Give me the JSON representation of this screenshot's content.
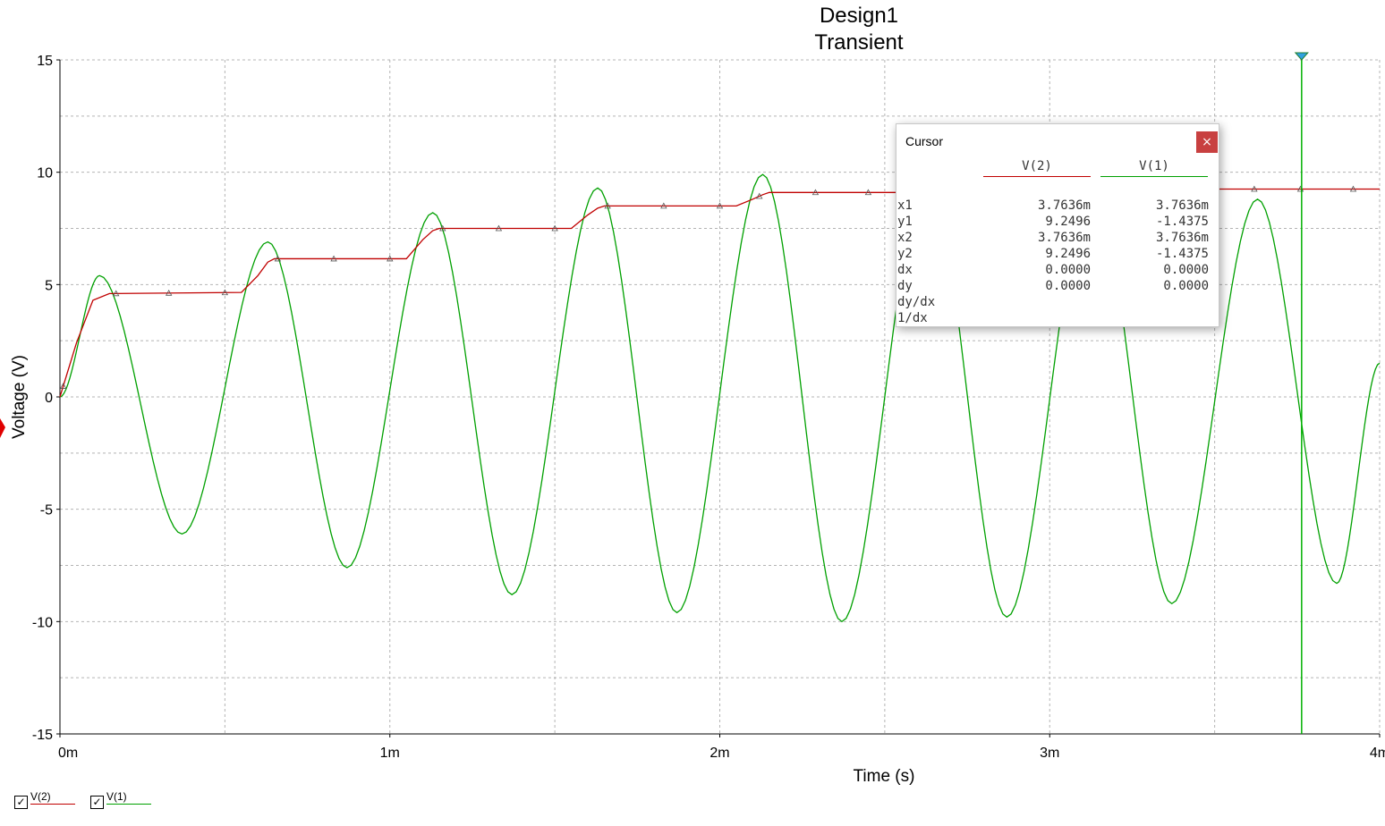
{
  "window_title_line1": "Design1",
  "window_title_line2": "Transient",
  "colors": {
    "v2": "#c00000",
    "v1": "#00a000",
    "grid": "#b4b4b4",
    "close": "#c84040"
  },
  "chart_data": {
    "type": "line",
    "title": "Design1",
    "subtitle": "Transient",
    "xlabel": "Time (s)",
    "ylabel": "Voltage (V)",
    "xlim": [
      0,
      0.004
    ],
    "ylim": [
      -15,
      15
    ],
    "grid": true,
    "legend": "bottom-left",
    "x_ticks": [
      {
        "value": 0,
        "label": "0m"
      },
      {
        "value": 0.001,
        "label": "1m"
      },
      {
        "value": 0.002,
        "label": "2m"
      },
      {
        "value": 0.003,
        "label": "3m"
      },
      {
        "value": 0.004,
        "label": "4m"
      }
    ],
    "y_ticks": [
      {
        "value": -15,
        "label": "-15"
      },
      {
        "value": -10,
        "label": "-10"
      },
      {
        "value": -5,
        "label": "-5"
      },
      {
        "value": 0,
        "label": "0"
      },
      {
        "value": 5,
        "label": "5"
      },
      {
        "value": 10,
        "label": "10"
      },
      {
        "value": 15,
        "label": "15"
      }
    ],
    "series": [
      {
        "name": "V(2)",
        "color": "#c00000",
        "x": [
          0,
          5e-05,
          0.0001,
          0.00015,
          0.00055,
          0.0006,
          0.00063,
          0.00065,
          0.00105,
          0.0011,
          0.00113,
          0.00115,
          0.00155,
          0.0016,
          0.00163,
          0.00165,
          0.00205,
          0.0021,
          0.00213,
          0.00215,
          0.00305,
          0.0031,
          0.00313,
          0.00315,
          0.004
        ],
        "values": [
          0,
          2.4,
          4.3,
          4.6,
          4.65,
          5.4,
          6.0,
          6.15,
          6.15,
          7.0,
          7.4,
          7.5,
          7.5,
          8.1,
          8.4,
          8.5,
          8.5,
          8.8,
          9.0,
          9.1,
          9.1,
          9.2,
          9.24,
          9.25,
          9.25
        ],
        "marker_x": [
          1e-05,
          0.00017,
          0.00033,
          0.0005,
          0.00066,
          0.00083,
          0.001,
          0.00116,
          0.00133,
          0.0015,
          0.00166,
          0.00183,
          0.002,
          0.00212,
          0.00229,
          0.00245,
          0.00262,
          0.00279,
          0.00295,
          0.00312,
          0.00329,
          0.00346,
          0.00362,
          0.00376,
          0.00392
        ]
      },
      {
        "name": "V(1)",
        "color": "#00a000",
        "x": [
          0,
          0.00012,
          0.00037,
          0.00063,
          0.00087,
          0.00113,
          0.00137,
          0.00163,
          0.00187,
          0.00213,
          0.00237,
          0.00263,
          0.00287,
          0.00313,
          0.00337,
          0.00363,
          0.00387,
          0.004
        ],
        "values": [
          0,
          5.4,
          -6.1,
          6.9,
          -7.6,
          8.2,
          -8.8,
          9.3,
          -9.6,
          9.9,
          -10.0,
          10.0,
          -9.8,
          9.6,
          -9.2,
          8.8,
          -8.3,
          1.5
        ]
      }
    ],
    "cursor": {
      "x": 0.0037636
    }
  },
  "cursor_panel": {
    "title": "Cursor",
    "close_label": "×",
    "columns": [
      "V(2)",
      "V(1)"
    ],
    "rows": [
      {
        "label": "x1",
        "v2": "3.7636m",
        "v1": "3.7636m"
      },
      {
        "label": "y1",
        "v2": "9.2496",
        "v1": "-1.4375"
      },
      {
        "label": "x2",
        "v2": "3.7636m",
        "v1": "3.7636m"
      },
      {
        "label": "y2",
        "v2": "9.2496",
        "v1": "-1.4375"
      },
      {
        "label": "dx",
        "v2": "0.0000",
        "v1": "0.0000"
      },
      {
        "label": "dy",
        "v2": "0.0000",
        "v1": "0.0000"
      },
      {
        "label": "dy/dx",
        "v2": "",
        "v1": ""
      },
      {
        "label": "1/dx",
        "v2": "",
        "v1": ""
      }
    ]
  },
  "legend": [
    {
      "name": "V(2)",
      "checked": "✓",
      "color": "#c00000"
    },
    {
      "name": "V(1)",
      "checked": "✓",
      "color": "#00a000"
    }
  ]
}
